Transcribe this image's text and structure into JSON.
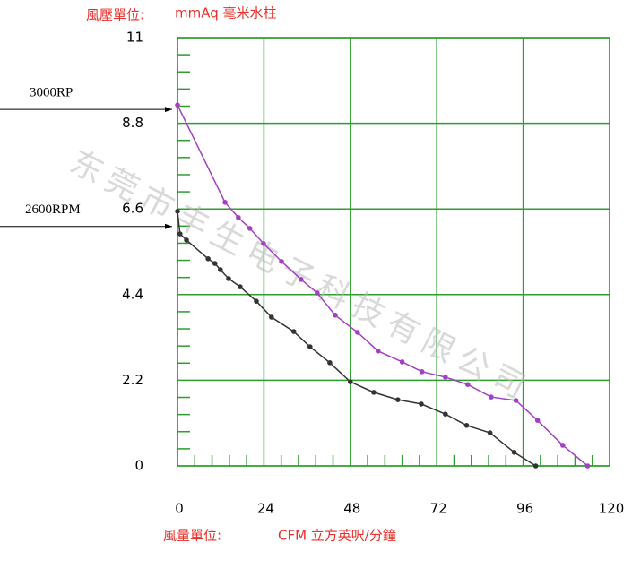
{
  "chart_data": {
    "type": "line",
    "y_label": "風壓單位:",
    "y_unit": "mmAq 毫米水柱",
    "x_label": "風量單位:",
    "x_unit": "CFM 立方英呎/分鐘",
    "watermark": "东莞市丰生电子科技有限公司",
    "xlim": [
      0,
      120
    ],
    "ylim": [
      0,
      11
    ],
    "xticks": [
      0,
      24,
      48,
      72,
      96,
      120
    ],
    "yticks": [
      0,
      2.2,
      4.4,
      6.6,
      8.8,
      11
    ],
    "minor_xticks": [
      4.8,
      9.6,
      14.4,
      19.2,
      28.8,
      33.6,
      38.4,
      43.2,
      52.8,
      57.6,
      62.4,
      67.2,
      76.8,
      81.6,
      86.4,
      91.2,
      100.8,
      105.6,
      110.4,
      115.2
    ],
    "minor_yticks": [
      0.44,
      0.88,
      1.32,
      1.76,
      2.64,
      3.08,
      3.52,
      3.96,
      4.84,
      5.28,
      5.72,
      6.16,
      7.04,
      7.48,
      7.92,
      8.36,
      9.24,
      9.68,
      10.12,
      10.56
    ],
    "grid": true,
    "grid_color": "#2e9e2e",
    "series": [
      {
        "name": "3000RP",
        "color": "#a23fc4",
        "x": [
          0,
          13.2,
          16.9,
          20.1,
          23.9,
          28.9,
          34.3,
          38.8,
          43.8,
          50.0,
          55.7,
          62.4,
          67.9,
          74.4,
          80.6,
          87.1,
          94.0,
          100.0,
          107.0,
          113.9
        ],
        "values": [
          9.27,
          6.77,
          6.38,
          6.1,
          5.71,
          5.25,
          4.79,
          4.44,
          3.87,
          3.43,
          2.95,
          2.67,
          2.42,
          2.28,
          2.09,
          1.77,
          1.68,
          1.17,
          0.53,
          0
        ]
      },
      {
        "name": "2600RPM",
        "color": "#333333",
        "x": [
          0,
          0.7,
          2.5,
          8.5,
          10.4,
          11.9,
          14.2,
          17.4,
          21.9,
          26.1,
          32.3,
          36.8,
          42.3,
          48.0,
          54.5,
          61.2,
          67.7,
          74.4,
          80.3,
          86.8,
          93.5,
          99.5
        ],
        "values": [
          6.54,
          5.96,
          5.8,
          5.32,
          5.2,
          5.04,
          4.81,
          4.6,
          4.23,
          3.82,
          3.45,
          3.06,
          2.65,
          2.16,
          1.89,
          1.7,
          1.59,
          1.33,
          1.04,
          0.85,
          0.35,
          0
        ]
      }
    ]
  }
}
